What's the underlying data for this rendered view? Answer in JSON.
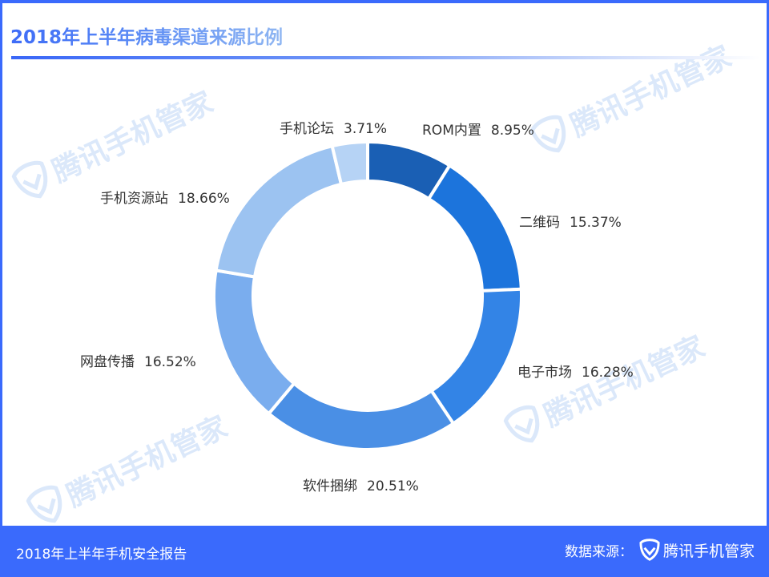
{
  "header": {
    "title": "2018年上半年病毒渠道来源比例"
  },
  "footer": {
    "report_title": "2018年上半年手机安全报告",
    "source_label": "数据来源：",
    "brand_icon": "shield-check-icon",
    "brand_name": "腾讯手机管家"
  },
  "watermark": {
    "text": "腾讯手机管家",
    "icon": "shield-check-icon"
  },
  "colors": {
    "frame": "#3a6afc",
    "title_gradient_start": "#3e6cf7",
    "title_gradient_end": "#8fb6f2",
    "watermark": "#dbe8fa",
    "label_text": "#333333"
  },
  "chart_data": {
    "type": "pie",
    "variant": "donut",
    "title": "2018年上半年病毒渠道来源比例",
    "start_angle": "12 o'clock",
    "direction": "clockwise",
    "legend": "none (labels placed outside slices)",
    "categories": [
      "ROM内置",
      "二维码",
      "电子市场",
      "软件捆绑",
      "网盘传播",
      "手机资源站",
      "手机论坛"
    ],
    "values": [
      8.95,
      15.37,
      16.28,
      20.51,
      16.52,
      18.66,
      3.71
    ],
    "unit": "%",
    "labels": [
      "8.95%",
      "15.37%",
      "16.28%",
      "20.51%",
      "16.52%",
      "18.66%",
      "3.71%"
    ],
    "colors": [
      "#1a5fb4",
      "#1c74dc",
      "#3384e6",
      "#4a8fe5",
      "#7aadee",
      "#9cc3f1",
      "#b6d3f5"
    ]
  }
}
